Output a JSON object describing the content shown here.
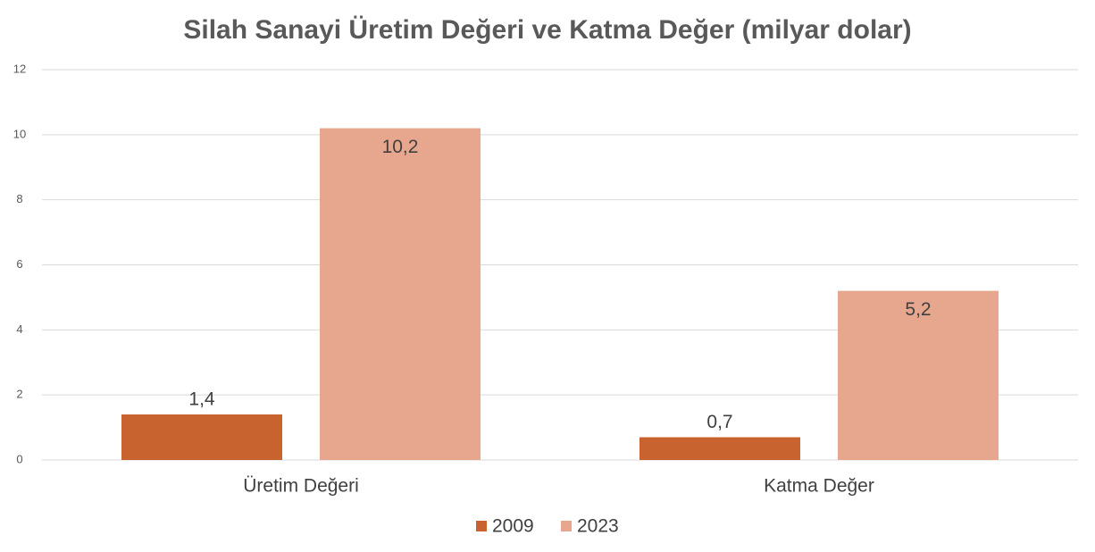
{
  "chart_data": {
    "type": "bar",
    "title": "Silah Sanayi Üretim Değeri ve Katma Değer (milyar dolar)",
    "categories": [
      "Üretim Değeri",
      "Katma Değer"
    ],
    "series": [
      {
        "name": "2009",
        "color": "#c8622f",
        "values": [
          1.4,
          0.7
        ],
        "value_labels": [
          "1,4",
          "0,7"
        ]
      },
      {
        "name": "2023",
        "color": "#e7a78e",
        "values": [
          10.2,
          5.2
        ],
        "value_labels": [
          "10,2",
          "5,2"
        ]
      }
    ],
    "ylim": [
      0,
      12
    ],
    "yticks": [
      0,
      2,
      4,
      6,
      8,
      10,
      12
    ],
    "grid": true
  }
}
